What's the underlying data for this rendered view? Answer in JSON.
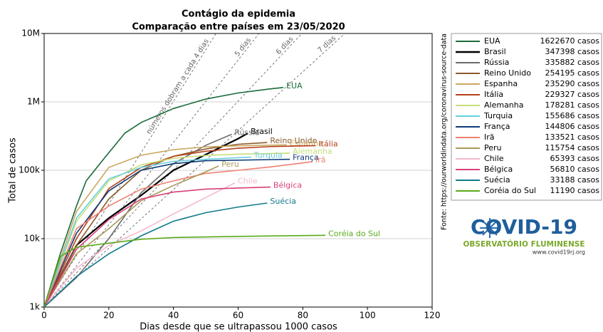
{
  "chart_data": {
    "type": "line",
    "title": "Contágio da epidemia",
    "subtitle": "Comparação entre países em 23/05/2020",
    "x_label": "Dias desde que se ultrapassou 1000 casos",
    "y_label": "Total de casos",
    "log_y": true,
    "grid": true,
    "xlim": [
      0,
      120
    ],
    "xticks": [
      0,
      20,
      40,
      60,
      80,
      100,
      120
    ],
    "ylim": [
      1000,
      10000000
    ],
    "yticks": [
      {
        "value": 1000,
        "label": "1k"
      },
      {
        "value": 10000,
        "label": "10k"
      },
      {
        "value": 100000,
        "label": "100k"
      },
      {
        "value": 1000000,
        "label": "1M"
      },
      {
        "value": 10000000,
        "label": "10M"
      }
    ],
    "doubling_lines": [
      {
        "days": 4,
        "label": "números dobram a cada 4 dias"
      },
      {
        "days": 5,
        "label": "5 dias"
      },
      {
        "days": 6,
        "label": "6 dias"
      },
      {
        "days": 7,
        "label": "7 dias"
      }
    ],
    "source": "Fonte: https://ourworldindata.org/coronavirus-source-data",
    "series": [
      {
        "name": "EUA",
        "color": "#1b6b3a",
        "total_label": "1622670 casos",
        "x": [
          0,
          5,
          10,
          13,
          19,
          25,
          30,
          40,
          50,
          60,
          70,
          74
        ],
        "values": [
          1000,
          6000,
          30000,
          70000,
          158000,
          350000,
          500000,
          800000,
          1100000,
          1350000,
          1550000,
          1622670
        ]
      },
      {
        "name": "Brasil",
        "color": "#000000",
        "total_label": "347398 casos",
        "x": [
          0,
          10,
          20,
          30,
          40,
          50,
          60,
          63
        ],
        "values": [
          1000,
          8000,
          20000,
          43000,
          100000,
          170000,
          290000,
          347398
        ]
      },
      {
        "name": "Rússia",
        "color": "#6b6b6b",
        "total_label": "335882 casos",
        "x": [
          0,
          10,
          20,
          30,
          40,
          50,
          58
        ],
        "values": [
          1000,
          2700,
          10000,
          47000,
          125000,
          232000,
          335882
        ]
      },
      {
        "name": "Reino Unido",
        "color": "#8c5a2b",
        "total_label": "254195 casos",
        "x": [
          0,
          10,
          20,
          30,
          40,
          50,
          60,
          69
        ],
        "values": [
          1000,
          8000,
          38000,
          100000,
          160000,
          205000,
          240000,
          254195
        ]
      },
      {
        "name": "Espanha",
        "color": "#c8a862",
        "total_label": "235290 casos",
        "x": [
          0,
          10,
          20,
          30,
          40,
          50,
          60,
          75
        ],
        "values": [
          1000,
          25000,
          110000,
          166000,
          200000,
          220000,
          228000,
          235290
        ]
      },
      {
        "name": "Itália",
        "color": "#b5401a",
        "total_label": "229327 casos",
        "x": [
          0,
          10,
          20,
          30,
          40,
          50,
          60,
          70,
          84
        ],
        "values": [
          1000,
          10000,
          54000,
          110000,
          160000,
          190000,
          210000,
          222000,
          229327
        ]
      },
      {
        "name": "Alemanha",
        "color": "#c6df78",
        "total_label": "178281 casos",
        "x": [
          0,
          10,
          20,
          30,
          40,
          50,
          60,
          76
        ],
        "values": [
          1000,
          18000,
          70000,
          120000,
          150000,
          165000,
          172000,
          178281
        ]
      },
      {
        "name": "Turquia",
        "color": "#66cfe0",
        "total_label": "155686 casos",
        "x": [
          0,
          10,
          20,
          30,
          40,
          50,
          64
        ],
        "values": [
          1000,
          20000,
          75000,
          110000,
          135000,
          145000,
          155686
        ]
      },
      {
        "name": "França",
        "color": "#0d3a7a",
        "total_label": "144806 casos",
        "x": [
          0,
          10,
          20,
          30,
          40,
          50,
          76
        ],
        "values": [
          1000,
          12000,
          50000,
          100000,
          125000,
          138000,
          144806
        ]
      },
      {
        "name": "Irã",
        "color": "#f08070",
        "total_label": "133521 casos",
        "x": [
          0,
          10,
          20,
          30,
          40,
          50,
          60,
          70,
          83
        ],
        "values": [
          1000,
          14000,
          30000,
          53000,
          70000,
          90000,
          100000,
          112000,
          133521
        ]
      },
      {
        "name": "Peru",
        "color": "#a89a5a",
        "total_label": "115754 casos",
        "x": [
          0,
          10,
          20,
          30,
          40,
          50,
          54
        ],
        "values": [
          1000,
          6000,
          14000,
          36000,
          60000,
          95000,
          115754
        ]
      },
      {
        "name": "Chile",
        "color": "#f4b8d0",
        "total_label": "65393 casos",
        "x": [
          0,
          10,
          20,
          30,
          40,
          50,
          59
        ],
        "values": [
          1000,
          3700,
          8000,
          13000,
          23000,
          40000,
          65393
        ]
      },
      {
        "name": "Bélgica",
        "color": "#d8407a",
        "total_label": "56810 casos",
        "x": [
          0,
          10,
          20,
          30,
          40,
          50,
          60,
          70
        ],
        "values": [
          1000,
          7000,
          19000,
          38000,
          48000,
          53000,
          55000,
          56810
        ]
      },
      {
        "name": "Suécia",
        "color": "#127a8e",
        "total_label": "33188 casos",
        "x": [
          0,
          10,
          20,
          30,
          40,
          50,
          60,
          69
        ],
        "values": [
          1000,
          2800,
          6000,
          11000,
          18000,
          24000,
          29000,
          33188
        ]
      },
      {
        "name": "Coréia do Sul",
        "color": "#5aaa1a",
        "total_label": "11190 casos",
        "x": [
          0,
          5,
          10,
          20,
          30,
          40,
          60,
          87
        ],
        "values": [
          1000,
          5500,
          7500,
          8600,
          9800,
          10400,
          10800,
          11190
        ]
      }
    ]
  },
  "logo": {
    "title": "COVID-19",
    "subtitle": "OBSERVATÓRIO FLUMINENSE",
    "url": "www.covid19rj.org"
  }
}
